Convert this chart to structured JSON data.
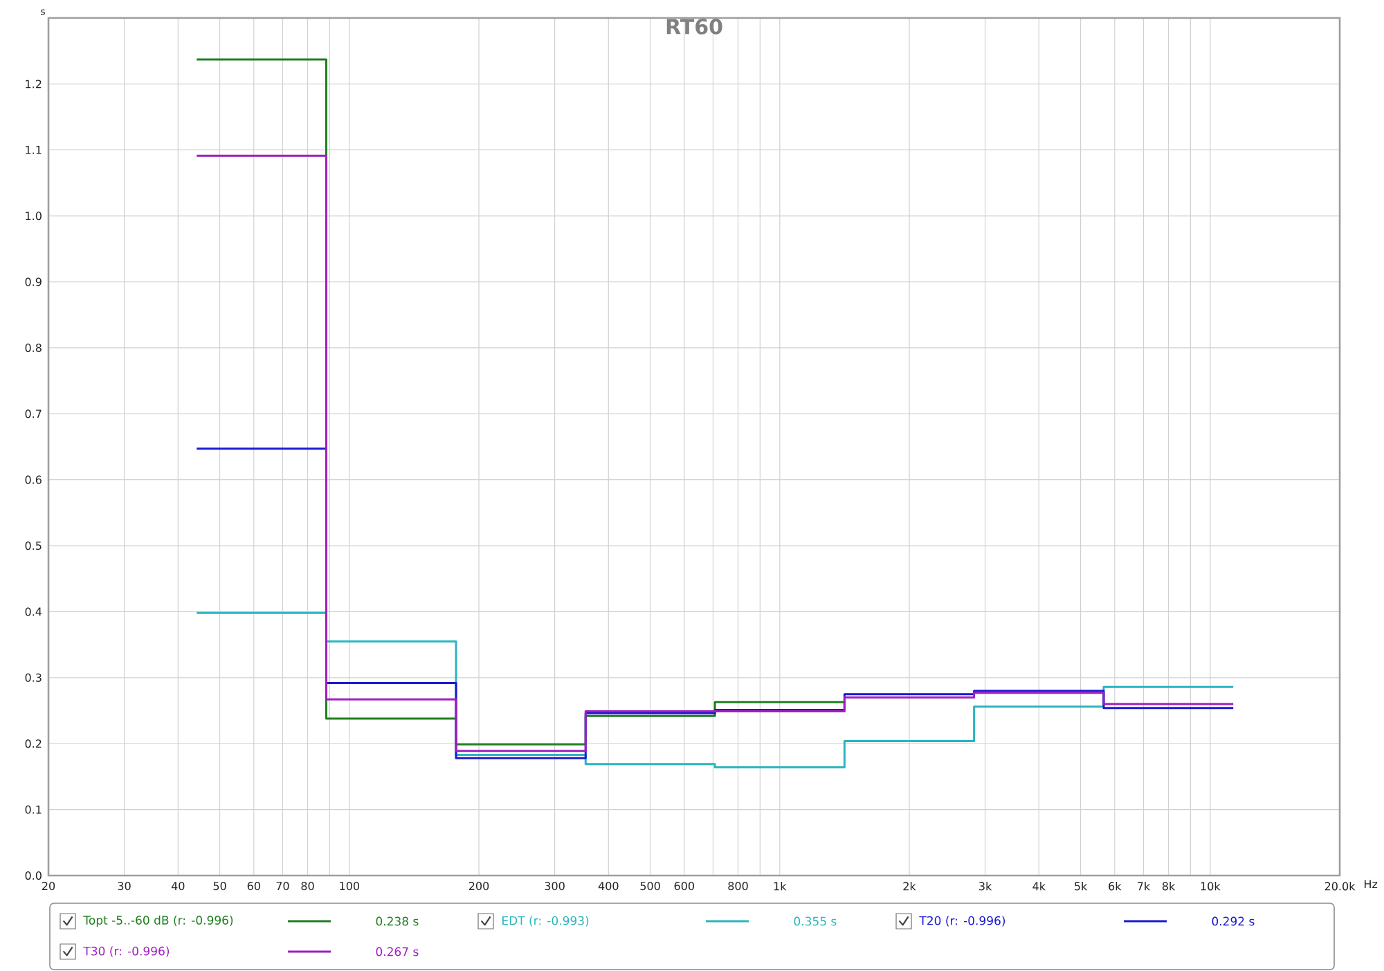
{
  "chart_data": {
    "type": "step",
    "title": "RT60",
    "xlabel": "Hz",
    "ylabel": "s",
    "x": [
      44.2,
      88.4,
      177,
      354,
      707,
      1414,
      2828,
      5657,
      11314
    ],
    "series": [
      {
        "name": "Topt -5..-60 dB (r: -0.996)",
        "color": "#1f7f1f",
        "x": [
          44.2,
          88.4,
          177,
          354,
          707,
          1414
        ],
        "values": [
          1.237,
          0.238,
          0.199,
          0.242,
          0.263,
          0.263
        ]
      },
      {
        "name": "EDT (r: -0.993)",
        "color": "#2ab5bf",
        "values": [
          0.398,
          0.355,
          0.183,
          0.169,
          0.164,
          0.204,
          0.256,
          0.286,
          0.286
        ]
      },
      {
        "name": "T20 (r: -0.996)",
        "color": "#1a1ad2",
        "values": [
          0.647,
          0.292,
          0.178,
          0.246,
          0.251,
          0.275,
          0.28,
          0.254,
          0.254
        ]
      },
      {
        "name": "T30 (r: -0.996)",
        "color": "#a01ec0",
        "values": [
          1.091,
          0.267,
          0.189,
          0.249,
          0.249,
          0.27,
          0.277,
          0.26,
          0.26
        ]
      }
    ],
    "annotations": [
      "0.238 s",
      "0.355 s",
      "0.292 s",
      "0.267 s"
    ],
    "log": "x",
    "xlim": [
      20,
      20000
    ],
    "ylim": [
      0,
      1.3
    ],
    "xticks": [
      20,
      30,
      40,
      50,
      60,
      70,
      80,
      {
        "value": 90,
        "label": null
      },
      100,
      200,
      300,
      400,
      500,
      600,
      {
        "value": 700,
        "label": null
      },
      800,
      {
        "value": 900,
        "label": null
      },
      {
        "value": 1000,
        "label": "1k"
      },
      {
        "value": 2000,
        "label": "2k"
      },
      {
        "value": 3000,
        "label": "3k"
      },
      {
        "value": 4000,
        "label": "4k"
      },
      {
        "value": 5000,
        "label": "5k"
      },
      {
        "value": 6000,
        "label": "6k"
      },
      {
        "value": 7000,
        "label": "7k"
      },
      {
        "value": 8000,
        "label": "8k"
      },
      {
        "value": 9000,
        "label": null
      },
      {
        "value": 10000,
        "label": "10k"
      },
      {
        "value": 20000,
        "label": "20.0k"
      }
    ],
    "yticks": [
      {
        "value": 0,
        "label": "0.0"
      },
      0.1,
      0.2,
      0.3,
      0.4,
      0.5,
      0.6,
      0.7,
      0.8,
      0.9,
      {
        "value": 1.0,
        "label": "1.0"
      },
      1.1,
      1.2
    ],
    "grid": true,
    "legend": "bottom"
  }
}
